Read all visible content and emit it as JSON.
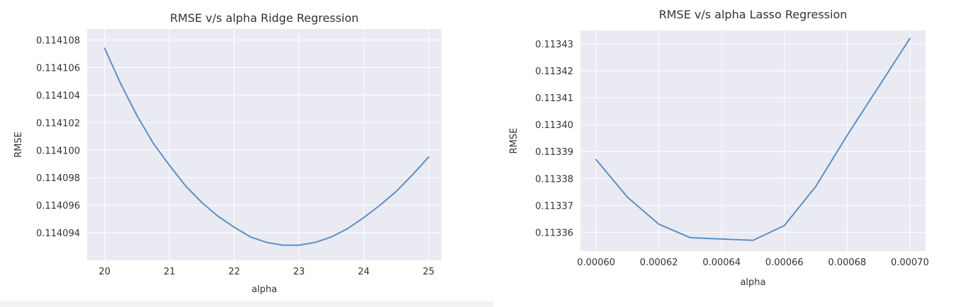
{
  "chart_data": [
    {
      "type": "line",
      "title": "RMSE v/s alpha Ridge Regression",
      "xlabel": "alpha",
      "ylabel": "RMSE",
      "xlim": [
        19.73,
        25.2
      ],
      "ylim": [
        0.114092,
        0.1141088
      ],
      "xticks": [
        20,
        21,
        22,
        23,
        24,
        25
      ],
      "xtick_labels": [
        "20",
        "21",
        "22",
        "23",
        "24",
        "25"
      ],
      "yticks": [
        0.114094,
        0.114096,
        0.114098,
        0.1141,
        0.114102,
        0.114104,
        0.114106,
        0.114108
      ],
      "ytick_labels": [
        "0.114094",
        "0.114096",
        "0.114098",
        "0.114100",
        "0.114102",
        "0.114104",
        "0.114106",
        "0.114108"
      ],
      "grid": true,
      "color": "#5b8fc9",
      "series": [
        {
          "name": "RMSE",
          "x": [
            20.0,
            20.25,
            20.5,
            20.75,
            21.0,
            21.25,
            21.5,
            21.75,
            22.0,
            22.25,
            22.5,
            22.75,
            23.0,
            23.25,
            23.5,
            23.75,
            24.0,
            24.25,
            24.5,
            24.75,
            25.0
          ],
          "values": [
            0.1141074,
            0.1141048,
            0.1141025,
            0.1141005,
            0.1140989,
            0.1140974,
            0.1140962,
            0.1140952,
            0.1140944,
            0.1140937,
            0.1140933,
            0.1140931,
            0.1140931,
            0.1140933,
            0.1140937,
            0.1140943,
            0.1140951,
            0.114096,
            0.114097,
            0.1140982,
            0.1140995
          ]
        }
      ]
    },
    {
      "type": "line",
      "title": "RMSE v/s alpha Lasso Regression",
      "xlabel": "alpha",
      "ylabel": "RMSE",
      "xlim": [
        0.000595,
        0.000705
      ],
      "ylim": [
        0.113353,
        0.113435
      ],
      "xticks": [
        0.0006,
        0.00062,
        0.00064,
        0.00066,
        0.00068,
        0.0007
      ],
      "xtick_labels": [
        "0.00060",
        "0.00062",
        "0.00064",
        "0.00066",
        "0.00068",
        "0.00070"
      ],
      "yticks": [
        0.11336,
        0.11337,
        0.11338,
        0.11339,
        0.1134,
        0.11341,
        0.11342,
        0.11343
      ],
      "ytick_labels": [
        "0.11336",
        "0.11337",
        "0.11338",
        "0.11339",
        "0.11340",
        "0.11341",
        "0.11342",
        "0.11343"
      ],
      "grid": true,
      "color": "#5b8fc9",
      "series": [
        {
          "name": "RMSE",
          "x": [
            0.0006,
            0.00061,
            0.00062,
            0.00063,
            0.00064,
            0.00065,
            0.00066,
            0.00067,
            0.00068,
            0.00069,
            0.0007
          ],
          "values": [
            0.113387,
            0.113373,
            0.113363,
            0.113358,
            0.1133575,
            0.113357,
            0.1133625,
            0.113377,
            0.113396,
            0.113414,
            0.113432
          ]
        }
      ]
    }
  ]
}
